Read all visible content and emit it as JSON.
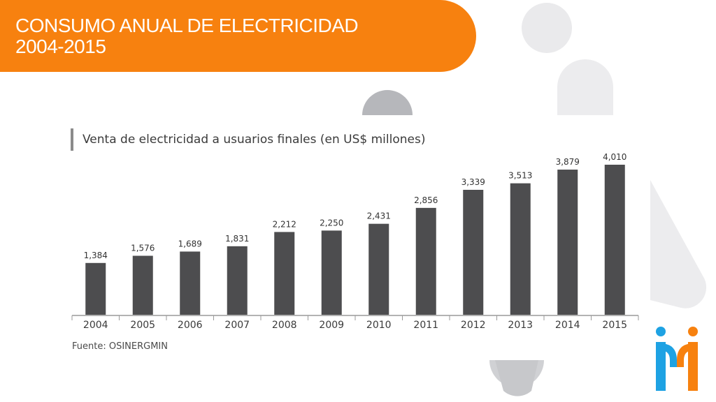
{
  "slide": {
    "title_line1": "CONSUMO ANUAL DE ELECTRICIDAD",
    "title_line2": "2004-2015"
  },
  "colors": {
    "banner": "#f7810f",
    "bars": "#4d4d4f",
    "logo_blue": "#1ea2e3",
    "logo_orange": "#f7810f"
  },
  "chart_data": {
    "type": "bar",
    "title": "Venta de electricidad a usuarios finales (en US$ millones)",
    "categories": [
      "2004",
      "2005",
      "2006",
      "2007",
      "2008",
      "2009",
      "2010",
      "2011",
      "2012",
      "2013",
      "2014",
      "2015"
    ],
    "values": [
      1384,
      1576,
      1689,
      1831,
      2212,
      2250,
      2431,
      2856,
      3339,
      3513,
      3879,
      4010
    ],
    "value_labels": [
      "1,384",
      "1,576",
      "1,689",
      "1,831",
      "2,212",
      "2,250",
      "2,431",
      "2,856",
      "3,339",
      "3,513",
      "3,879",
      "4,010"
    ],
    "xlabel": "",
    "ylabel": "",
    "ylim": [
      0,
      4200
    ],
    "grid": false,
    "source": "Fuente: OSINERGMIN"
  }
}
